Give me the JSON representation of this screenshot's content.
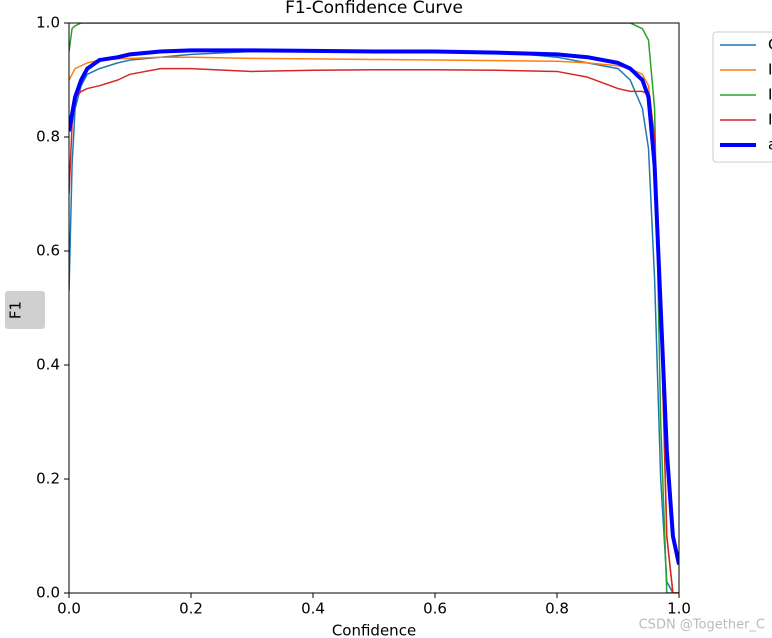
{
  "chart_data": {
    "type": "line",
    "title": "F1-Confidence Curve",
    "xlabel": "Confidence",
    "ylabel": "F1",
    "x": [
      0,
      0.005,
      0.01,
      0.02,
      0.03,
      0.05,
      0.08,
      0.1,
      0.15,
      0.2,
      0.3,
      0.4,
      0.5,
      0.6,
      0.7,
      0.8,
      0.85,
      0.9,
      0.92,
      0.94,
      0.95,
      0.96,
      0.97,
      0.98,
      0.99,
      1.0
    ],
    "series": [
      {
        "name": "C",
        "color": "#1f77b4",
        "width": 1.5,
        "values": [
          0.53,
          0.75,
          0.85,
          0.89,
          0.91,
          0.92,
          0.93,
          0.935,
          0.94,
          0.945,
          0.95,
          0.95,
          0.95,
          0.95,
          0.95,
          0.94,
          0.93,
          0.92,
          0.9,
          0.85,
          0.78,
          0.55,
          0.2,
          0.02,
          0,
          0
        ]
      },
      {
        "name": "I",
        "color": "#ff7f0e",
        "width": 1.5,
        "values": [
          0.9,
          0.91,
          0.92,
          0.925,
          0.93,
          0.935,
          0.937,
          0.938,
          0.94,
          0.94,
          0.938,
          0.937,
          0.936,
          0.935,
          0.934,
          0.933,
          0.93,
          0.925,
          0.92,
          0.91,
          0.89,
          0.8,
          0.5,
          0.1,
          0,
          0
        ]
      },
      {
        "name": "I",
        "color": "#2ca02c",
        "width": 1.5,
        "values": [
          0.95,
          0.99,
          0.995,
          1,
          1,
          1,
          1,
          1,
          1,
          1,
          1,
          1,
          1,
          1,
          1,
          1,
          1,
          1,
          1,
          0.99,
          0.97,
          0.85,
          0.3,
          0,
          0,
          0
        ]
      },
      {
        "name": "I",
        "color": "#d62728",
        "width": 1.5,
        "values": [
          0.7,
          0.82,
          0.87,
          0.88,
          0.885,
          0.89,
          0.9,
          0.91,
          0.92,
          0.92,
          0.915,
          0.917,
          0.918,
          0.918,
          0.917,
          0.915,
          0.905,
          0.885,
          0.88,
          0.88,
          0.875,
          0.8,
          0.5,
          0.1,
          0,
          0
        ]
      },
      {
        "name": "a",
        "color": "#0000ff",
        "width": 4,
        "values": [
          0.81,
          0.84,
          0.87,
          0.9,
          0.92,
          0.935,
          0.94,
          0.945,
          0.95,
          0.952,
          0.952,
          0.951,
          0.95,
          0.95,
          0.948,
          0.945,
          0.94,
          0.93,
          0.92,
          0.9,
          0.87,
          0.75,
          0.5,
          0.25,
          0.1,
          0.05
        ]
      }
    ],
    "xlim": [
      0,
      1
    ],
    "ylim": [
      0,
      1
    ],
    "xticks": [
      {
        "value": 0,
        "label": "0.0"
      },
      0.2,
      0.4,
      0.6,
      0.8,
      {
        "value": 1,
        "label": "1.0"
      }
    ],
    "yticks": [
      {
        "value": 0,
        "label": "0.0"
      },
      0.2,
      0.4,
      0.6,
      0.8,
      {
        "value": 1,
        "label": "1.0"
      }
    ],
    "legend": "outside-upper-right"
  },
  "watermark": "CSDN @Together_C"
}
